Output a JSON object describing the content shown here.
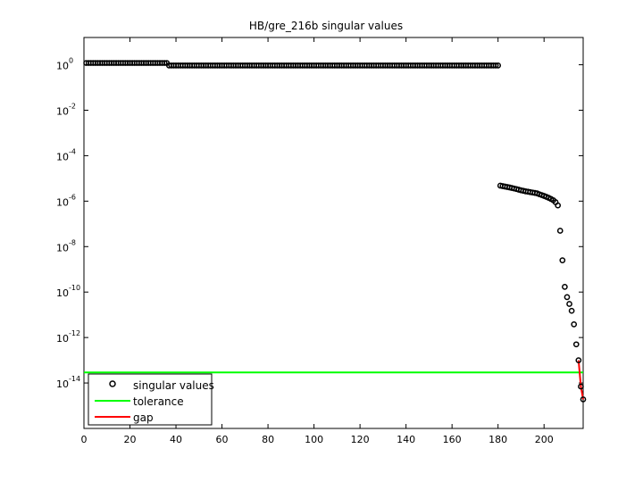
{
  "chart_data": {
    "type": "scatter",
    "title": "HB/gre_216b singular values",
    "xlabel": "",
    "ylabel": "",
    "xlim": [
      0,
      217
    ],
    "ylim_log10": [
      -16,
      1.2
    ],
    "y_scale": "log",
    "grid": false,
    "legend_placement": "bottom-left",
    "x_ticks": [
      0,
      20,
      40,
      60,
      80,
      100,
      120,
      140,
      160,
      180,
      200
    ],
    "y_ticks_log10": [
      0,
      -2,
      -4,
      -6,
      -8,
      -10,
      -12,
      -14
    ],
    "y_tick_base": "10",
    "y_tick_exponents": [
      "0",
      "-2",
      "-4",
      "-6",
      "-8",
      "-10",
      "-12",
      "-14"
    ],
    "legend": [
      {
        "name": "singular values",
        "color": "#000000",
        "marker": "circle"
      },
      {
        "name": "tolerance",
        "color": "#00ff00",
        "marker": "line"
      },
      {
        "name": "gap",
        "color": "#ff0000",
        "marker": "line"
      }
    ],
    "series": [
      {
        "name": "singular values",
        "color": "#000000",
        "segments": [
          {
            "x_start": 1,
            "x_end": 36,
            "value": 1.2
          },
          {
            "x_start": 37,
            "x_end": 180,
            "value": 0.93
          }
        ],
        "points": [
          [
            181,
            4.8e-06
          ],
          [
            182,
            4.6e-06
          ],
          [
            183,
            4.4e-06
          ],
          [
            184,
            4.2e-06
          ],
          [
            185,
            4e-06
          ],
          [
            186,
            3.8e-06
          ],
          [
            187,
            3.6e-06
          ],
          [
            188,
            3.4e-06
          ],
          [
            189,
            3.2e-06
          ],
          [
            190,
            3e-06
          ],
          [
            191,
            2.85e-06
          ],
          [
            192,
            2.7e-06
          ],
          [
            193,
            2.6e-06
          ],
          [
            194,
            2.5e-06
          ],
          [
            195,
            2.4e-06
          ],
          [
            196,
            2.3e-06
          ],
          [
            197,
            2.2e-06
          ],
          [
            198,
            2e-06
          ],
          [
            199,
            1.85e-06
          ],
          [
            200,
            1.7e-06
          ],
          [
            201,
            1.55e-06
          ],
          [
            202,
            1.4e-06
          ],
          [
            203,
            1.25e-06
          ],
          [
            204,
            1.1e-06
          ],
          [
            205,
            9e-07
          ],
          [
            206,
            6.5e-07
          ],
          [
            207,
            5e-08
          ],
          [
            208,
            2.5e-09
          ],
          [
            209,
            1.7e-10
          ],
          [
            210,
            6e-11
          ],
          [
            211,
            3e-11
          ],
          [
            212,
            1.5e-11
          ],
          [
            213,
            3.8e-12
          ],
          [
            214,
            5e-13
          ],
          [
            215,
            1e-13
          ],
          [
            216,
            7e-15
          ],
          [
            217,
            1.9e-15
          ]
        ]
      },
      {
        "name": "tolerance",
        "color": "#00ff00",
        "value": 2.9e-14
      },
      {
        "name": "gap",
        "color": "#ff0000",
        "points": [
          [
            215,
            1e-13
          ],
          [
            216,
            7e-15
          ],
          [
            217,
            1.9e-15
          ]
        ]
      }
    ]
  }
}
